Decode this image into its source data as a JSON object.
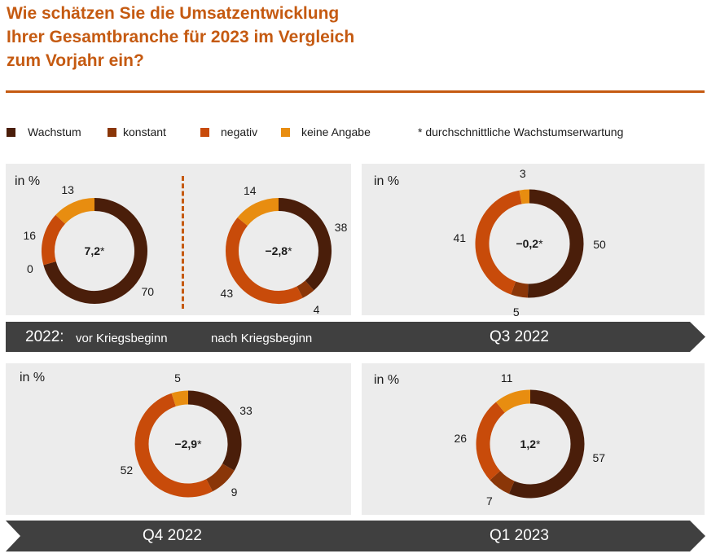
{
  "title": {
    "line1": "Wie schätzen Sie die Umsatzentwicklung",
    "line2": "Ihrer Gesamtbranche für 2023 im Vergleich",
    "line3": "zum Vorjahr ein?"
  },
  "legend": {
    "items": [
      {
        "label": "Wachstum",
        "color": "#4a1e0a"
      },
      {
        "label": "konstant",
        "color": "#8a3608"
      },
      {
        "label": "negativ",
        "color": "#c84b0a"
      },
      {
        "label": "keine Angabe",
        "color": "#e88d10"
      }
    ],
    "note": "* durchschnittliche Wachstumserwartung"
  },
  "unit_label": "in %",
  "bands": {
    "top": {
      "year": "2022:",
      "before": "vor Kriegsbeginn",
      "after": "nach Kriegsbeginn",
      "q3": "Q3 2022"
    },
    "bottom": {
      "q4": "Q4 2022",
      "q1": "Q1 2023"
    }
  },
  "chart_data": [
    {
      "type": "pie",
      "title": "2022 vor Kriegsbeginn",
      "categories": [
        "Wachstum",
        "konstant",
        "negativ",
        "keine Angabe"
      ],
      "values": [
        70,
        0,
        16,
        13
      ],
      "center_value": "7,2",
      "center_suffix": "*"
    },
    {
      "type": "pie",
      "title": "2022 nach Kriegsbeginn",
      "categories": [
        "Wachstum",
        "konstant",
        "negativ",
        "keine Angabe"
      ],
      "values": [
        38,
        4,
        43,
        14
      ],
      "center_value": "−2,8",
      "center_suffix": "*"
    },
    {
      "type": "pie",
      "title": "Q3 2022",
      "categories": [
        "Wachstum",
        "konstant",
        "negativ",
        "keine Angabe"
      ],
      "values": [
        50,
        5,
        41,
        3
      ],
      "center_value": "−0,2",
      "center_suffix": "*"
    },
    {
      "type": "pie",
      "title": "Q4 2022",
      "categories": [
        "Wachstum",
        "konstant",
        "negativ",
        "keine Angabe"
      ],
      "values": [
        33,
        9,
        52,
        5
      ],
      "center_value": "−2,9",
      "center_suffix": "*"
    },
    {
      "type": "pie",
      "title": "Q1 2023",
      "categories": [
        "Wachstum",
        "konstant",
        "negativ",
        "keine Angabe"
      ],
      "values": [
        57,
        7,
        26,
        11
      ],
      "center_value": "1,2",
      "center_suffix": "*"
    }
  ]
}
